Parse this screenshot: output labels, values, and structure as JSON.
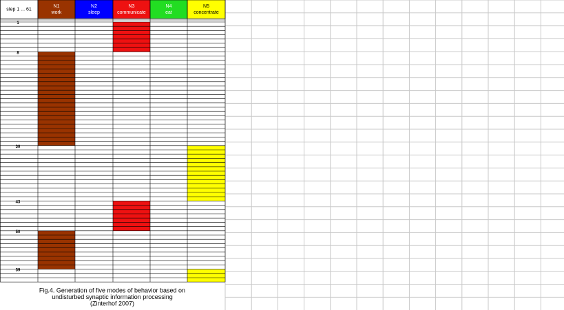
{
  "table": {
    "columns": [
      {
        "lines": [
          "step 1 ... 61"
        ],
        "color": "#ffffff",
        "text_color": "#000000",
        "intervals": []
      },
      {
        "lines": [
          "N1",
          "work"
        ],
        "color": "#993300",
        "text_color": "#ffffff",
        "intervals": [
          [
            8,
            29
          ],
          [
            50,
            58
          ]
        ]
      },
      {
        "lines": [
          "N2",
          "sleep"
        ],
        "color": "#0000ff",
        "text_color": "#ffffff",
        "intervals": []
      },
      {
        "lines": [
          "N3",
          "communicate"
        ],
        "color": "#ee1111",
        "text_color": "#ffffff",
        "intervals": [
          [
            1,
            7
          ],
          [
            43,
            49
          ]
        ]
      },
      {
        "lines": [
          "N4",
          "eat"
        ],
        "color": "#22dd22",
        "text_color": "#ffffff",
        "intervals": []
      },
      {
        "lines": [
          "N5",
          "concentrate"
        ],
        "color": "#ffff00",
        "text_color": "#000000",
        "intervals": [
          [
            30,
            42
          ],
          [
            59,
            61
          ]
        ]
      }
    ],
    "steps": 61,
    "step_labels": [
      1,
      8,
      30,
      43,
      50,
      59
    ]
  },
  "caption": {
    "lines": [
      "Fig.4. Generation of five modes of behavior based on",
      "undisturbed synaptic information processing",
      "(Zinterhof 2007)"
    ]
  }
}
